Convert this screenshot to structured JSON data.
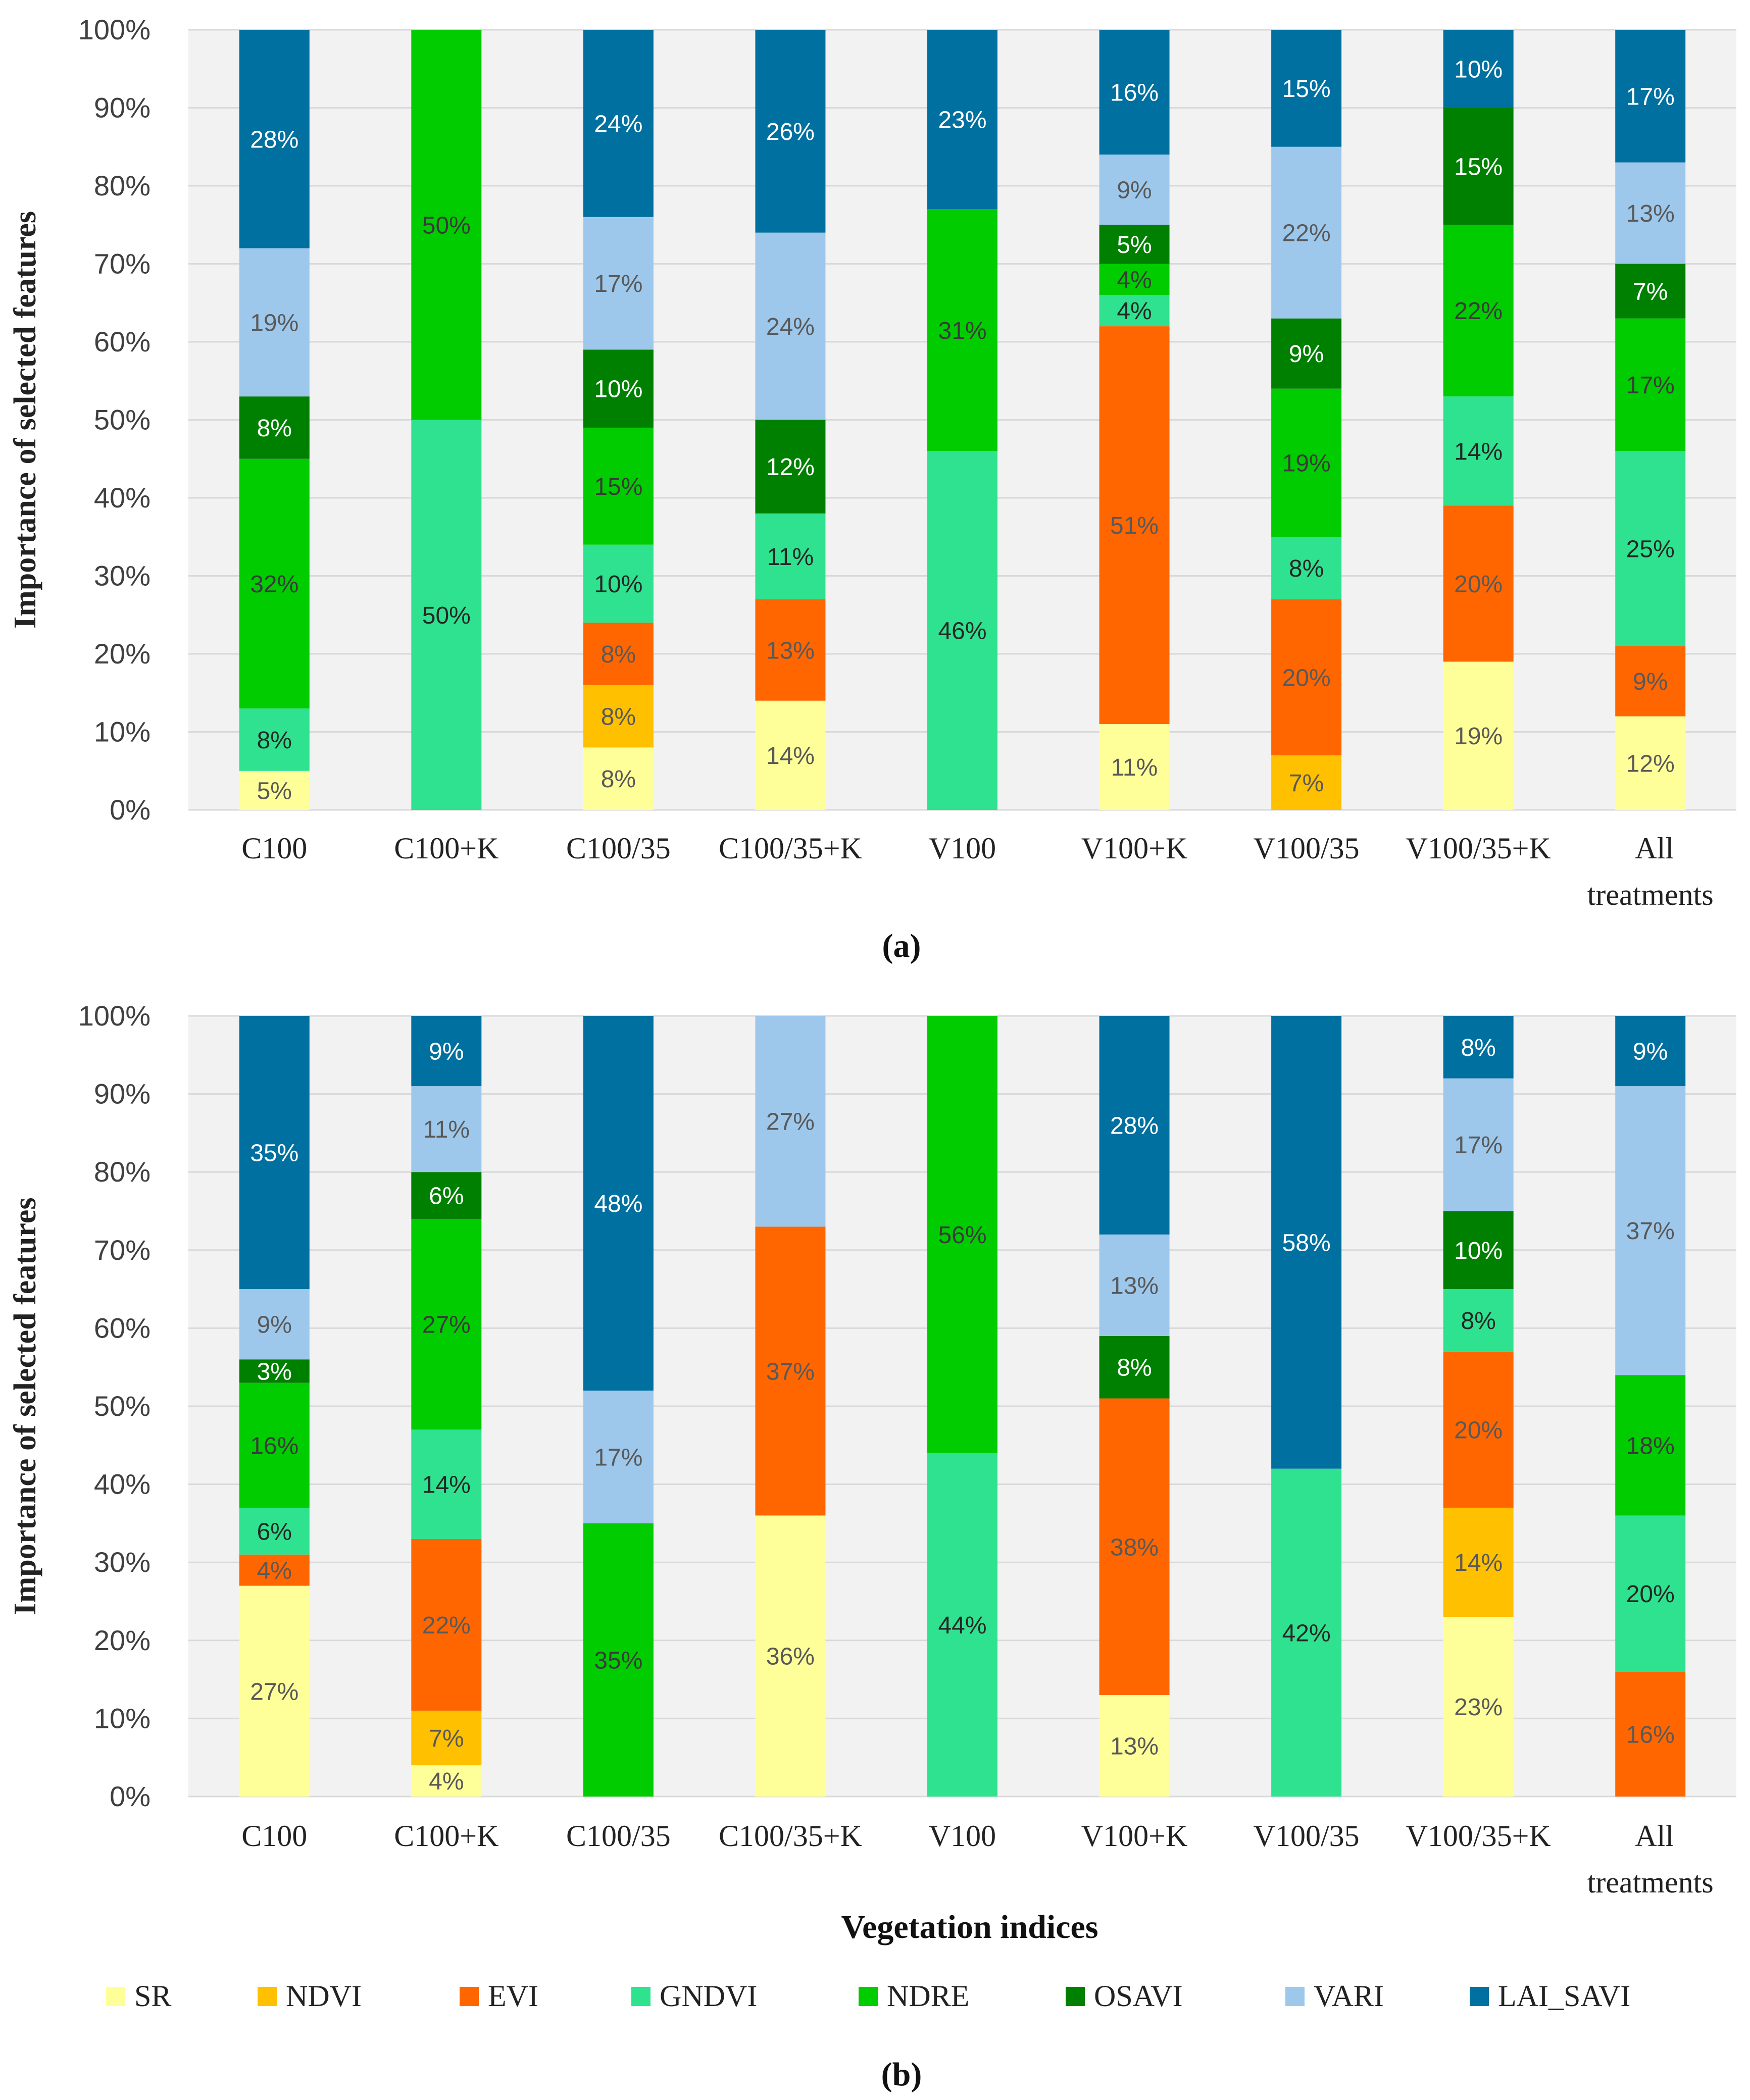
{
  "legend": [
    "SR",
    "NDVI",
    "EVI",
    "GNDVI",
    "NDRE",
    "OSAVI",
    "VARI",
    "LAI_SAVI"
  ],
  "colors": {
    "SR": "#FFFF99",
    "NDVI": "#FFC000",
    "EVI": "#FF6600",
    "GNDVI": "#2EE28F",
    "NDRE": "#00CC00",
    "OSAVI": "#008000",
    "VARI": "#9DC8EC",
    "LAI_SAVI": "#0070A0"
  },
  "label_colors": {
    "SR": "#595959",
    "NDVI": "#595959",
    "EVI": "#595959",
    "GNDVI": "#262626",
    "NDRE": "#3a3a3a",
    "OSAVI": "#ffffff",
    "VARI": "#595959",
    "LAI_SAVI": "#ffffff"
  },
  "chart_data": [
    {
      "type": "bar",
      "stacked": true,
      "panel_label": "(a)",
      "ylabel": "Importance of selected features",
      "xlabel": "",
      "ylim": [
        0,
        100
      ],
      "yticks": [
        "0%",
        "10%",
        "20%",
        "30%",
        "40%",
        "50%",
        "60%",
        "70%",
        "80%",
        "90%",
        "100%"
      ],
      "categories": [
        "C100",
        "C100+K",
        "C100/35",
        "C100/35+K",
        "V100",
        "V100+K",
        "V100/35",
        "V100/35+K",
        "All treatments"
      ],
      "series": [
        {
          "name": "SR",
          "values": [
            5,
            0,
            8,
            14,
            0,
            11,
            0,
            19,
            12
          ]
        },
        {
          "name": "NDVI",
          "values": [
            0,
            0,
            8,
            0,
            0,
            0,
            7,
            0,
            0
          ]
        },
        {
          "name": "EVI",
          "values": [
            0,
            0,
            8,
            13,
            0,
            51,
            20,
            20,
            9
          ]
        },
        {
          "name": "GNDVI",
          "values": [
            8,
            50,
            10,
            11,
            46,
            4,
            8,
            14,
            25
          ]
        },
        {
          "name": "NDRE",
          "values": [
            32,
            50,
            15,
            0,
            31,
            4,
            19,
            22,
            17
          ]
        },
        {
          "name": "OSAVI",
          "values": [
            8,
            0,
            10,
            12,
            0,
            5,
            9,
            15,
            7
          ]
        },
        {
          "name": "VARI",
          "values": [
            19,
            0,
            17,
            24,
            0,
            9,
            22,
            0,
            13
          ]
        },
        {
          "name": "LAI_SAVI",
          "values": [
            28,
            0,
            24,
            26,
            23,
            16,
            15,
            10,
            17
          ]
        }
      ]
    },
    {
      "type": "bar",
      "stacked": true,
      "panel_label": "(b)",
      "ylabel": "Importance of selected features",
      "xlabel": "Vegetation indices",
      "ylim": [
        0,
        100
      ],
      "yticks": [
        "0%",
        "10%",
        "20%",
        "30%",
        "40%",
        "50%",
        "60%",
        "70%",
        "80%",
        "90%",
        "100%"
      ],
      "categories": [
        "C100",
        "C100+K",
        "C100/35",
        "C100/35+K",
        "V100",
        "V100+K",
        "V100/35",
        "V100/35+K",
        "All treatments"
      ],
      "series": [
        {
          "name": "SR",
          "values": [
            27,
            4,
            0,
            36,
            0,
            13,
            0,
            23,
            0
          ]
        },
        {
          "name": "NDVI",
          "values": [
            0,
            7,
            0,
            0,
            0,
            0,
            0,
            14,
            0
          ]
        },
        {
          "name": "EVI",
          "values": [
            4,
            22,
            0,
            37,
            0,
            38,
            0,
            20,
            16
          ]
        },
        {
          "name": "GNDVI",
          "values": [
            6,
            14,
            0,
            0,
            44,
            0,
            42,
            8,
            20
          ]
        },
        {
          "name": "NDRE",
          "values": [
            16,
            27,
            35,
            0,
            56,
            0,
            0,
            0,
            18
          ]
        },
        {
          "name": "OSAVI",
          "values": [
            3,
            6,
            0,
            0,
            0,
            8,
            0,
            10,
            0
          ]
        },
        {
          "name": "VARI",
          "values": [
            9,
            11,
            17,
            27,
            0,
            13,
            0,
            17,
            37
          ]
        },
        {
          "name": "LAI_SAVI",
          "values": [
            35,
            9,
            48,
            0,
            0,
            28,
            58,
            8,
            9
          ]
        }
      ]
    }
  ]
}
